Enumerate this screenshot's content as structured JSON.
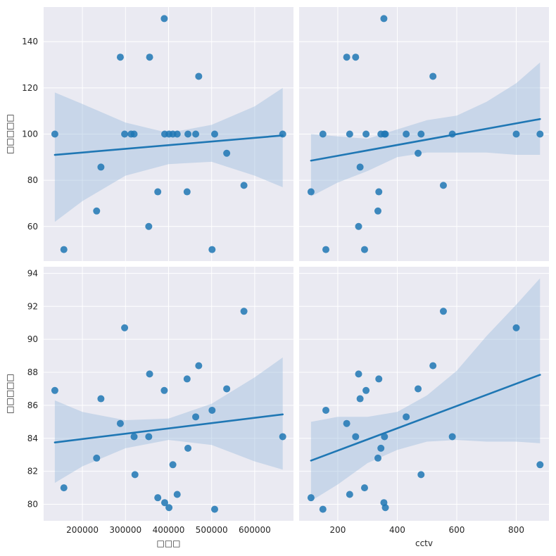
{
  "chart_data": {
    "type": "scatter",
    "kind": "pairplot-regression",
    "style": "seaborn-darkgrid",
    "grid": true,
    "colors": {
      "point": "#1f77b4",
      "line": "#1f77b4",
      "band": "#9fbfdd",
      "panel_bg": "#eaeaf2",
      "grid": "#ffffff"
    },
    "x_axes": [
      {
        "label": "□□□",
        "ticks": [
          200000,
          300000,
          400000,
          500000,
          600000
        ],
        "tick_labels": [
          "200000",
          "300000",
          "400000",
          "500000",
          "600000"
        ],
        "range": [
          110000,
          690000
        ]
      },
      {
        "label": "cctv",
        "ticks": [
          200,
          400,
          600,
          800
        ],
        "tick_labels": [
          "200",
          "400",
          "600",
          "800"
        ],
        "range": [
          70,
          910
        ]
      }
    ],
    "y_axes": [
      {
        "label": "□□□□□",
        "ticks": [
          60,
          80,
          100,
          120,
          140
        ],
        "tick_labels": [
          "60",
          "80",
          "100",
          "120",
          "140"
        ],
        "range": [
          45,
          155
        ]
      },
      {
        "label": "□□□□□",
        "ticks": [
          80,
          82,
          84,
          86,
          88,
          90,
          92,
          94
        ],
        "tick_labels": [
          "80",
          "82",
          "84",
          "86",
          "88",
          "90",
          "92",
          "94"
        ],
        "range": [
          79,
          94.4
        ]
      }
    ],
    "panels": [
      {
        "row": 0,
        "col": 0,
        "points": [
          [
            136000,
            100
          ],
          [
            157000,
            50
          ],
          [
            233000,
            66.7
          ],
          [
            243000,
            85.7
          ],
          [
            288000,
            133.3
          ],
          [
            298000,
            100
          ],
          [
            313000,
            100
          ],
          [
            320000,
            100
          ],
          [
            354000,
            60
          ],
          [
            356000,
            133.3
          ],
          [
            375000,
            75
          ],
          [
            390000,
            150
          ],
          [
            391000,
            100
          ],
          [
            401000,
            100
          ],
          [
            410000,
            100
          ],
          [
            420000,
            100
          ],
          [
            443000,
            75
          ],
          [
            445000,
            100
          ],
          [
            463000,
            100
          ],
          [
            470000,
            125
          ],
          [
            501000,
            50
          ],
          [
            507000,
            100
          ],
          [
            535000,
            91.7
          ],
          [
            575000,
            77.8
          ],
          [
            665000,
            100
          ]
        ],
        "fit": [
          [
            136000,
            91
          ],
          [
            665000,
            99.4
          ]
        ],
        "band_upper": [
          [
            136000,
            118
          ],
          [
            200000,
            113
          ],
          [
            300000,
            105
          ],
          [
            400000,
            100.5
          ],
          [
            500000,
            104
          ],
          [
            600000,
            112
          ],
          [
            665000,
            120
          ]
        ],
        "band_lower": [
          [
            136000,
            62
          ],
          [
            200000,
            71
          ],
          [
            300000,
            82
          ],
          [
            400000,
            87
          ],
          [
            500000,
            88
          ],
          [
            600000,
            82
          ],
          [
            665000,
            77
          ]
        ]
      },
      {
        "row": 0,
        "col": 1,
        "points": [
          [
            110,
            75
          ],
          [
            150,
            100
          ],
          [
            160,
            50
          ],
          [
            230,
            133.3
          ],
          [
            240,
            100
          ],
          [
            260,
            133.3
          ],
          [
            270,
            60
          ],
          [
            275,
            85.7
          ],
          [
            290,
            50
          ],
          [
            295,
            100
          ],
          [
            335,
            66.7
          ],
          [
            338,
            75
          ],
          [
            345,
            100
          ],
          [
            355,
            150
          ],
          [
            357,
            100
          ],
          [
            360,
            100
          ],
          [
            430,
            100
          ],
          [
            470,
            91.7
          ],
          [
            480,
            100
          ],
          [
            520,
            125
          ],
          [
            555,
            77.8
          ],
          [
            585,
            100
          ],
          [
            800,
            100
          ],
          [
            880,
            100
          ]
        ],
        "fit": [
          [
            110,
            88.5
          ],
          [
            880,
            106.5
          ]
        ],
        "band_upper": [
          [
            110,
            100
          ],
          [
            200,
            99
          ],
          [
            300,
            98
          ],
          [
            400,
            102
          ],
          [
            500,
            106
          ],
          [
            600,
            108
          ],
          [
            700,
            114
          ],
          [
            800,
            122
          ],
          [
            880,
            131
          ]
        ],
        "band_lower": [
          [
            110,
            73
          ],
          [
            200,
            79
          ],
          [
            300,
            84
          ],
          [
            400,
            90
          ],
          [
            500,
            92
          ],
          [
            600,
            92
          ],
          [
            700,
            92
          ],
          [
            800,
            91
          ],
          [
            880,
            91
          ]
        ]
      },
      {
        "row": 1,
        "col": 0,
        "points": [
          [
            136000,
            86.9
          ],
          [
            157000,
            81
          ],
          [
            233000,
            82.8
          ],
          [
            243000,
            86.4
          ],
          [
            288000,
            84.9
          ],
          [
            298000,
            90.7
          ],
          [
            320000,
            84.1
          ],
          [
            322000,
            81.8
          ],
          [
            354000,
            84.1
          ],
          [
            356000,
            87.9
          ],
          [
            375000,
            80.4
          ],
          [
            390000,
            86.9
          ],
          [
            391000,
            80.1
          ],
          [
            401000,
            79.8
          ],
          [
            410000,
            82.4
          ],
          [
            420000,
            80.6
          ],
          [
            443000,
            87.6
          ],
          [
            445000,
            83.4
          ],
          [
            463000,
            85.3
          ],
          [
            470000,
            88.4
          ],
          [
            501000,
            85.7
          ],
          [
            507000,
            79.7
          ],
          [
            535000,
            87
          ],
          [
            575000,
            91.7
          ],
          [
            665000,
            84.1
          ]
        ],
        "fit": [
          [
            136000,
            83.75
          ],
          [
            665000,
            85.45
          ]
        ],
        "band_upper": [
          [
            136000,
            86.3
          ],
          [
            200000,
            85.6
          ],
          [
            300000,
            85.1
          ],
          [
            400000,
            85.2
          ],
          [
            500000,
            86.1
          ],
          [
            600000,
            87.7
          ],
          [
            665000,
            88.9
          ]
        ],
        "band_lower": [
          [
            136000,
            81.3
          ],
          [
            200000,
            82.3
          ],
          [
            300000,
            83.4
          ],
          [
            400000,
            83.9
          ],
          [
            500000,
            83.6
          ],
          [
            600000,
            82.6
          ],
          [
            665000,
            82.1
          ]
        ]
      },
      {
        "row": 1,
        "col": 1,
        "points": [
          [
            110,
            80.4
          ],
          [
            150,
            79.7
          ],
          [
            160,
            85.7
          ],
          [
            230,
            84.9
          ],
          [
            240,
            80.6
          ],
          [
            260,
            84.1
          ],
          [
            270,
            87.9
          ],
          [
            275,
            86.4
          ],
          [
            290,
            81
          ],
          [
            295,
            86.9
          ],
          [
            335,
            82.8
          ],
          [
            338,
            87.6
          ],
          [
            345,
            83.4
          ],
          [
            355,
            80.1
          ],
          [
            357,
            84.1
          ],
          [
            360,
            79.8
          ],
          [
            430,
            85.3
          ],
          [
            470,
            87
          ],
          [
            480,
            81.8
          ],
          [
            520,
            88.4
          ],
          [
            555,
            91.7
          ],
          [
            585,
            84.1
          ],
          [
            800,
            90.7
          ],
          [
            880,
            82.4
          ]
        ],
        "fit": [
          [
            110,
            82.65
          ],
          [
            880,
            87.85
          ]
        ],
        "band_upper": [
          [
            110,
            85
          ],
          [
            200,
            85.3
          ],
          [
            300,
            85.3
          ],
          [
            400,
            85.6
          ],
          [
            500,
            86.6
          ],
          [
            600,
            88.1
          ],
          [
            700,
            90.2
          ],
          [
            800,
            92.1
          ],
          [
            880,
            93.7
          ]
        ],
        "band_lower": [
          [
            110,
            80.2
          ],
          [
            200,
            81.2
          ],
          [
            300,
            82.5
          ],
          [
            400,
            83.3
          ],
          [
            500,
            83.8
          ],
          [
            600,
            83.9
          ],
          [
            700,
            83.8
          ],
          [
            800,
            83.8
          ],
          [
            880,
            83.7
          ]
        ]
      }
    ]
  }
}
